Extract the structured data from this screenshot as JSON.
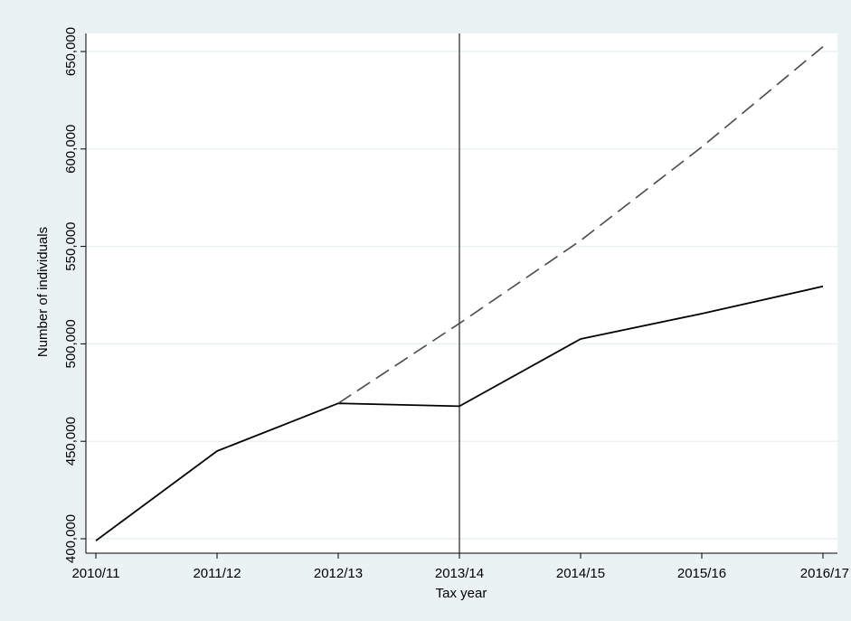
{
  "colors": {
    "outer_background": "#eaf2f3",
    "plot_background": "#ffffff",
    "grid": "#eaf2f3",
    "series_line": "#000000",
    "dashed_line": "#4a4a4a",
    "reference_line": "#333333"
  },
  "chart_data": {
    "type": "line",
    "title": "",
    "xlabel": "Tax year",
    "ylabel": "Number of individuals",
    "categories": [
      "2010/11",
      "2011/12",
      "2012/13",
      "2013/14",
      "2014/15",
      "2015/16",
      "2016/17"
    ],
    "ylim": [
      400000,
      650000
    ],
    "yticks": [
      400000,
      450000,
      500000,
      550000,
      600000,
      650000
    ],
    "ytick_labels": [
      "400,000",
      "450,000",
      "500,000",
      "550,000",
      "600,000",
      "650,000"
    ],
    "grid": true,
    "legend": "none",
    "series": [
      {
        "style": "solid",
        "x": [
          "2010/11",
          "2011/12",
          "2012/13",
          "2013/14",
          "2014/15",
          "2015/16",
          "2016/17"
        ],
        "values": [
          399000,
          445000,
          469500,
          468000,
          502500,
          515500,
          529500
        ]
      },
      {
        "style": "dashed",
        "x": [
          "2012/13",
          "2013/14",
          "2014/15",
          "2015/16",
          "2016/17"
        ],
        "values": [
          469500,
          510500,
          553000,
          601000,
          652500
        ]
      }
    ],
    "vertical_reference_at": "2013/14"
  }
}
